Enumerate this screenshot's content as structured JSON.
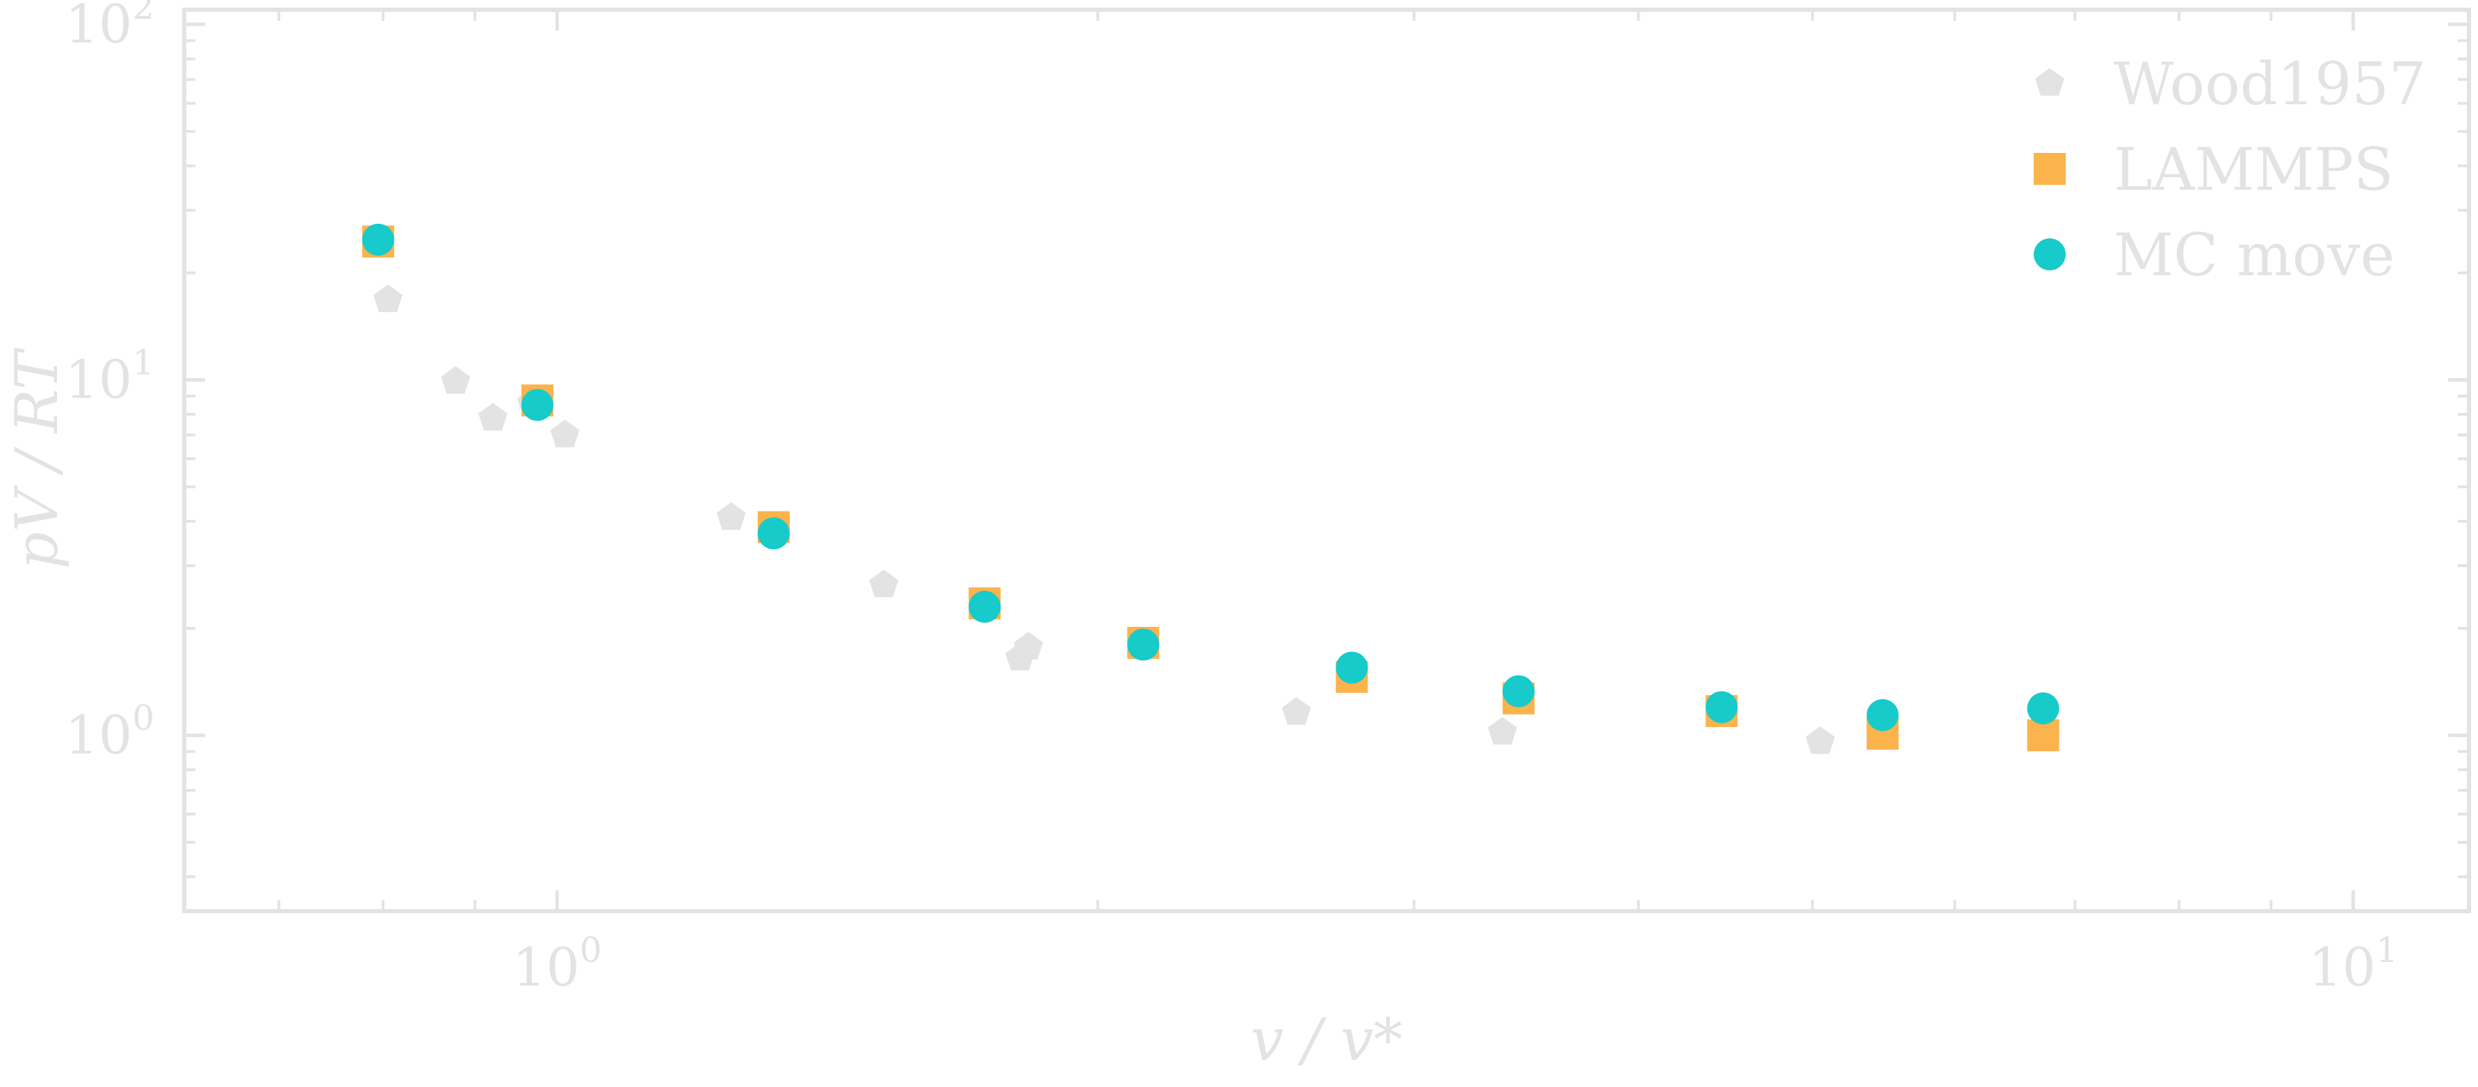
{
  "chart_data": {
    "type": "scatter",
    "xscale": "log",
    "yscale": "log",
    "xlim": [
      0.62,
      11.6
    ],
    "ylim": [
      0.32,
      110
    ],
    "xlabel": "v / v*",
    "ylabel": "pV / RT",
    "grid": false,
    "legend_position": "top-right",
    "x_ticks": [
      {
        "base": "10",
        "exp": "0",
        "value": 1
      },
      {
        "base": "10",
        "exp": "1",
        "value": 10
      }
    ],
    "y_ticks": [
      {
        "base": "10",
        "exp": "0",
        "value": 1
      },
      {
        "base": "10",
        "exp": "1",
        "value": 10
      },
      {
        "base": "10",
        "exp": "2",
        "value": 100
      }
    ],
    "series": [
      {
        "name": "Wood1957",
        "marker": "pentagon",
        "color": "#e3e3e3",
        "points": [
          {
            "x": 0.805,
            "y": 16.8
          },
          {
            "x": 0.878,
            "y": 9.9
          },
          {
            "x": 0.921,
            "y": 7.8
          },
          {
            "x": 0.968,
            "y": 8.6
          },
          {
            "x": 1.01,
            "y": 7.0
          },
          {
            "x": 1.25,
            "y": 4.1
          },
          {
            "x": 1.52,
            "y": 2.65
          },
          {
            "x": 1.81,
            "y": 1.65
          },
          {
            "x": 1.83,
            "y": 1.77
          },
          {
            "x": 2.58,
            "y": 1.16
          },
          {
            "x": 3.36,
            "y": 1.02
          },
          {
            "x": 5.05,
            "y": 0.96
          }
        ]
      },
      {
        "name": "LAMMPS",
        "marker": "square",
        "color": "#fbb34b",
        "points": [
          {
            "x": 0.795,
            "y": 24.5
          },
          {
            "x": 0.975,
            "y": 8.75
          },
          {
            "x": 1.32,
            "y": 3.85
          },
          {
            "x": 1.73,
            "y": 2.35
          },
          {
            "x": 2.12,
            "y": 1.82
          },
          {
            "x": 2.77,
            "y": 1.46
          },
          {
            "x": 3.43,
            "y": 1.27
          },
          {
            "x": 4.45,
            "y": 1.17
          },
          {
            "x": 5.47,
            "y": 1.01
          },
          {
            "x": 6.72,
            "y": 1.0
          }
        ]
      },
      {
        "name": "MC move",
        "marker": "circle",
        "color": "#16cbc9",
        "points": [
          {
            "x": 0.795,
            "y": 24.8
          },
          {
            "x": 0.975,
            "y": 8.5
          },
          {
            "x": 1.32,
            "y": 3.7
          },
          {
            "x": 1.73,
            "y": 2.3
          },
          {
            "x": 2.12,
            "y": 1.8
          },
          {
            "x": 2.77,
            "y": 1.55
          },
          {
            "x": 3.43,
            "y": 1.33
          },
          {
            "x": 4.45,
            "y": 1.2
          },
          {
            "x": 5.47,
            "y": 1.14
          },
          {
            "x": 6.72,
            "y": 1.19
          }
        ]
      }
    ]
  }
}
